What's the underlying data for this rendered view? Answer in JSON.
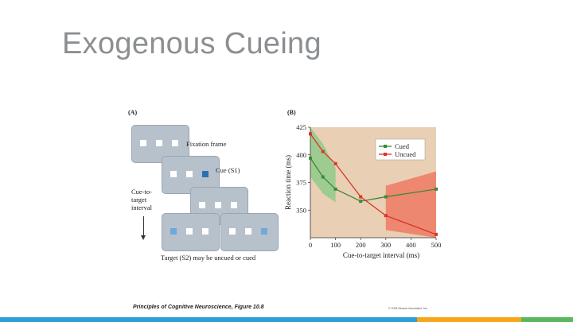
{
  "slide": {
    "title": "Exogenous Cueing"
  },
  "figure": {
    "panel_a_label": "(A)",
    "panel_b_label": "(B)",
    "fixation_label": "Fixation frame",
    "cue_label": "Cue (S1)",
    "interval_label_line1": "Cue-to-",
    "interval_label_line2": "target",
    "interval_label_line3": "interval",
    "target_label": "Target (S2) may be uncued or cued",
    "caption": "Principles of Cognitive Neuroscience, Figure 10.8",
    "copyright": "© 2008 Sinauer Associates, Inc."
  },
  "colors": {
    "chart_bg": "#e9cfb4",
    "cued": "#3a8a3a",
    "cued_band": "#8fca8a",
    "uncued": "#d9362a",
    "uncued_band": "#ee7a63",
    "footer": [
      "#2c9fd8",
      "#2c9fd8",
      "#2c9fd8",
      "#2c9fd8",
      "#2c9fd8",
      "#2c9fd8",
      "#2c9fd8",
      "#2c9fd8",
      "#f6a61b",
      "#f6a61b",
      "#5bb75b"
    ]
  },
  "chart_data": {
    "type": "line",
    "xlabel": "Cue-to-target interval (ms)",
    "ylabel": "Reaction time (ms)",
    "xlim": [
      0,
      500
    ],
    "ylim": [
      325,
      425
    ],
    "xticks": [
      0,
      100,
      200,
      300,
      400,
      500
    ],
    "yticks": [
      350,
      375,
      400,
      425
    ],
    "legend_position": "top-right",
    "series": [
      {
        "name": "Cued",
        "x": [
          0,
          50,
          100,
          200,
          300,
          500
        ],
        "y": [
          397,
          380,
          369,
          358,
          362,
          369
        ]
      },
      {
        "name": "Uncued",
        "x": [
          0,
          50,
          100,
          200,
          300,
          500
        ],
        "y": [
          419,
          403,
          392,
          362,
          345,
          328
        ]
      }
    ],
    "bands": [
      {
        "series": "Cued",
        "x": [
          0,
          50,
          100
        ],
        "low": [
          380,
          365,
          357
        ],
        "high": [
          425,
          410,
          388
        ]
      },
      {
        "series": "Uncued",
        "x": [
          300,
          500
        ],
        "low": [
          332,
          321
        ],
        "high": [
          372,
          385
        ]
      }
    ]
  }
}
